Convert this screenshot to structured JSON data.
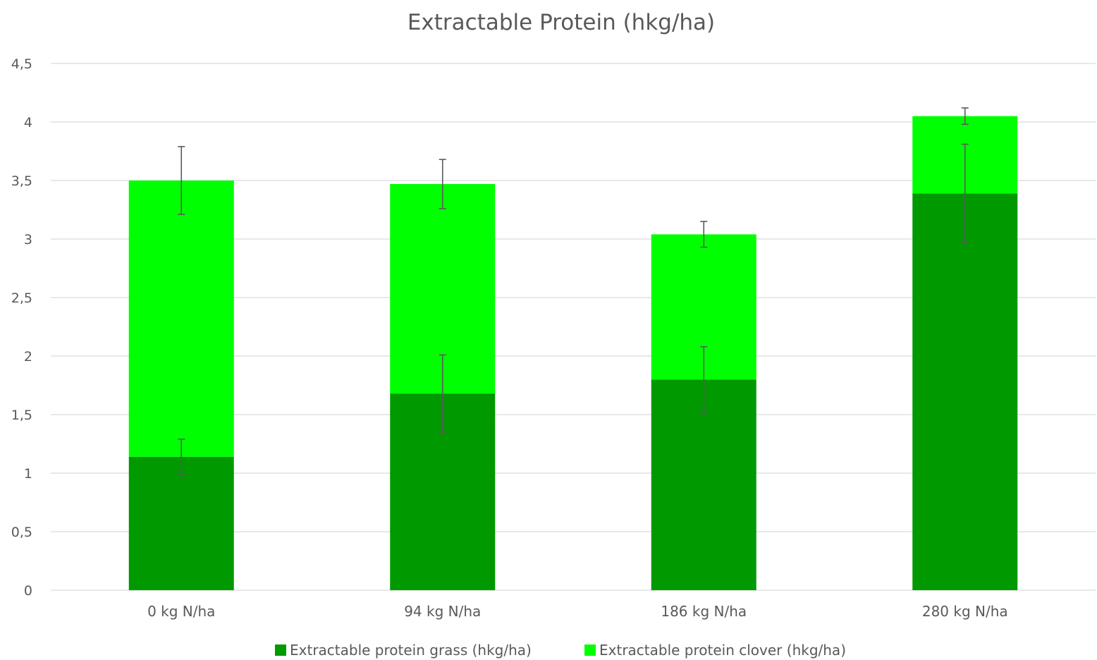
{
  "chart_data": {
    "type": "bar",
    "stacked": true,
    "title": "Extractable Protein (hkg/ha)",
    "xlabel": "",
    "ylabel": "",
    "categories": [
      "0 kg N/ha",
      "94 kg N/ha",
      "186 kg N/ha",
      "280 kg N/ha"
    ],
    "ylim": [
      0,
      4.5
    ],
    "yticks": [
      0,
      0.5,
      1,
      1.5,
      2,
      2.5,
      3,
      3.5,
      4,
      4.5
    ],
    "ytick_labels": [
      "0",
      "0,5",
      "1",
      "1,5",
      "2",
      "2,5",
      "3",
      "3,5",
      "4",
      "4,5"
    ],
    "grid": true,
    "legend_position": "bottom",
    "series": [
      {
        "name": "Extractable protein grass (hkg/ha)",
        "color": "#009900",
        "values": [
          1.14,
          1.68,
          1.8,
          3.39
        ],
        "error": [
          0.15,
          0.33,
          0.28,
          0.42
        ]
      },
      {
        "name": "Extractable protein clover (hkg/ha)",
        "color": "#00ff00",
        "values": [
          2.36,
          1.79,
          1.24,
          0.66
        ],
        "error": [
          0.29,
          0.21,
          0.11,
          0.07
        ]
      }
    ]
  }
}
